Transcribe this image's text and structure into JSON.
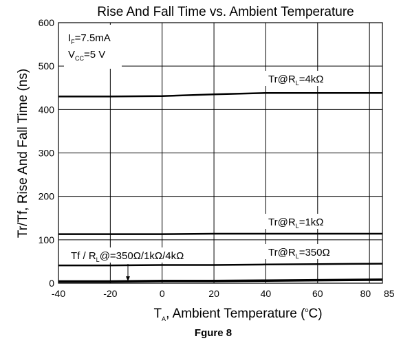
{
  "chart_data": {
    "type": "line",
    "title": "Rise And Fall Time vs. Ambient Temperature",
    "xlabel": {
      "main": "T",
      "sub": "A",
      "rest": ", Ambient Temperature (",
      "sup": "o",
      "end": "C)"
    },
    "ylabel": "Tr/Tf, Rise And Fall Time (ns)",
    "caption": "Fgure 8",
    "xlim": [
      -40,
      85
    ],
    "ylim": [
      0,
      600
    ],
    "xticks": [
      -40,
      -20,
      0,
      20,
      40,
      60,
      80,
      85
    ],
    "yticks": [
      0,
      100,
      200,
      300,
      400,
      500,
      600
    ],
    "grid": true,
    "conditions": [
      {
        "main": "I",
        "sub": "F",
        "rest": "=7.5mA"
      },
      {
        "main": "V",
        "sub": "CC",
        "rest": "=5 V"
      }
    ],
    "series": [
      {
        "label": {
          "main": "Tr@R",
          "sub": "L",
          "rest": "=4kΩ"
        },
        "x": [
          -40,
          -20,
          0,
          20,
          40,
          60,
          85
        ],
        "y": [
          430,
          430,
          431,
          435,
          438,
          438,
          438
        ]
      },
      {
        "label": {
          "main": "Tr@R",
          "sub": "L",
          "rest": "=1kΩ"
        },
        "x": [
          -40,
          -20,
          0,
          20,
          40,
          60,
          85
        ],
        "y": [
          113,
          113,
          113,
          114,
          114,
          114,
          114
        ]
      },
      {
        "label": {
          "main": "Tr@R",
          "sub": "L",
          "rest": "=350Ω"
        },
        "x": [
          -40,
          -20,
          0,
          20,
          40,
          60,
          85
        ],
        "y": [
          41,
          41,
          42,
          42,
          43,
          44,
          45
        ]
      },
      {
        "label": {
          "main": "Tf / R",
          "sub": "L",
          "rest": "@=350Ω/1kΩ/4kΩ"
        },
        "x": [
          -40,
          -20,
          0,
          20,
          40,
          60,
          85
        ],
        "y": [
          4,
          4,
          5,
          5,
          6,
          7,
          8
        ]
      }
    ]
  }
}
